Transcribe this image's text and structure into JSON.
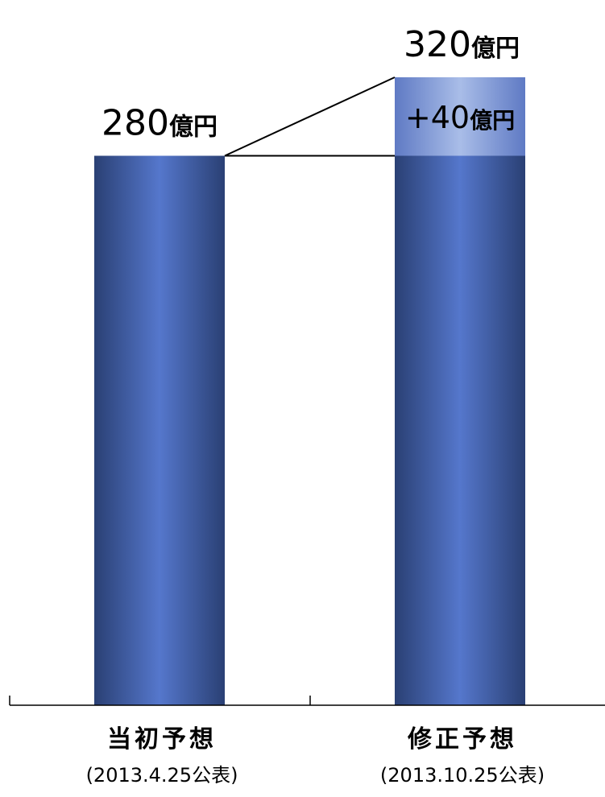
{
  "chart_data": {
    "type": "bar",
    "categories": [
      {
        "label": "当初予想",
        "sublabel": "(2013.4.25公表)"
      },
      {
        "label": "修正予想",
        "sublabel": "(2013.10.25公表)"
      }
    ],
    "values": [
      280,
      320
    ],
    "value_labels": [
      "280億円",
      "320億円"
    ],
    "increase": {
      "from_index": 0,
      "to_index": 1,
      "value": 40,
      "label": "+40億円"
    },
    "unit": "億円",
    "ylim": [
      0,
      320
    ],
    "grid": false,
    "legend": "none",
    "axis": {
      "y_visible": false,
      "x_line": true
    },
    "colors": {
      "bar_dark": "#2a4074",
      "bar_light": "#5577cc",
      "increase_dark": "#5f7ac4",
      "increase_light": "#a9bde8",
      "axis": "#000000",
      "text": "#000000"
    }
  }
}
